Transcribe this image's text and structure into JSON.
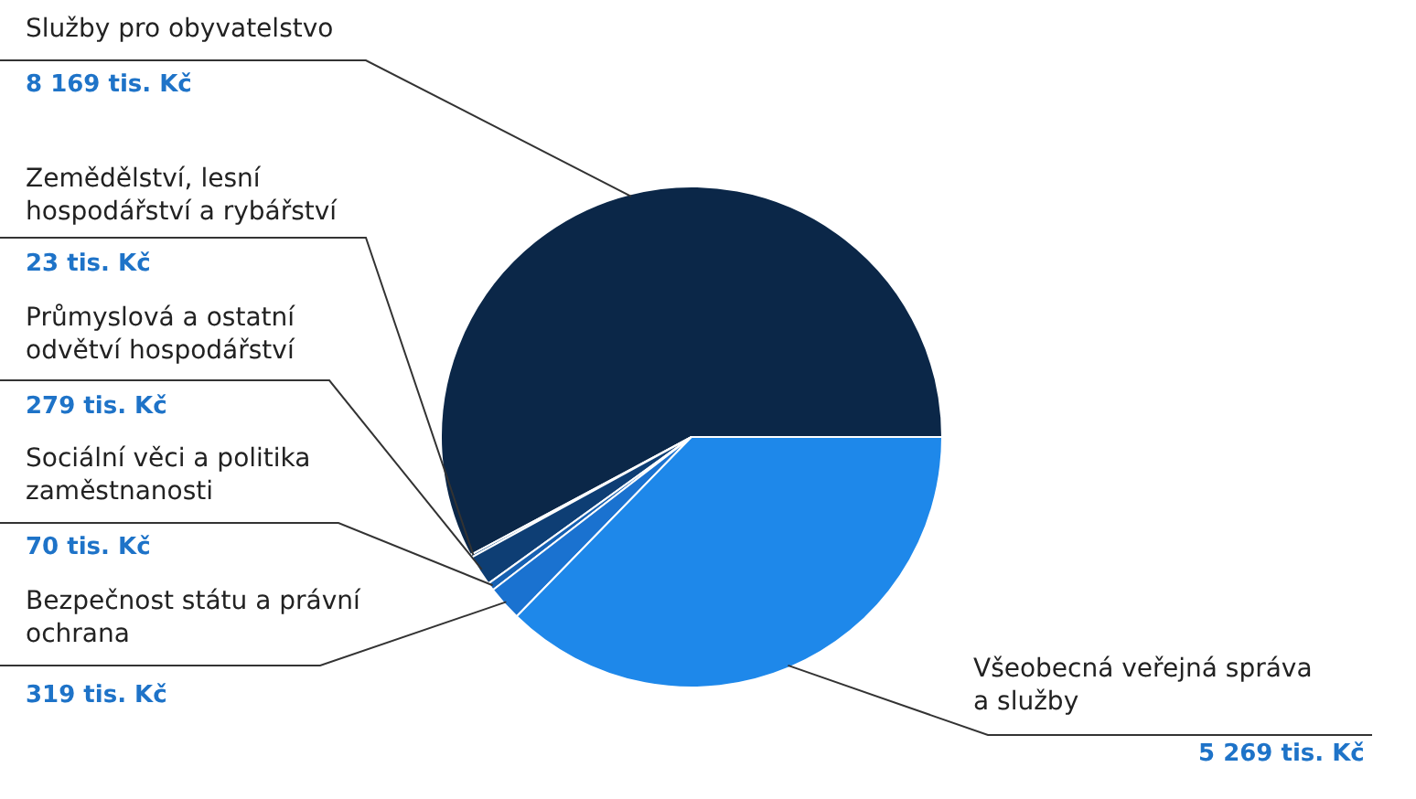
{
  "chart_data": {
    "type": "pie",
    "categories": [
      "Služby pro obyvatelstvo",
      "Zemědělství, lesní hospodářství a rybářství",
      "Průmyslová a ostatní odvětví hospodářství",
      "Sociální věci a politika zaměstnanosti",
      "Bezpečnost státu a právní ochrana",
      "Všeobecná veřejná správa a služby"
    ],
    "values": [
      8169,
      23,
      279,
      70,
      319,
      5269
    ],
    "value_labels": [
      "8 169 tis. Kč",
      "23 tis. Kč",
      "279 tis. Kč",
      "70 tis. Kč",
      "319 tis. Kč",
      "5 269 tis. Kč"
    ],
    "colors": [
      "#0b2748",
      "#114a86",
      "#0e3e74",
      "#1560b2",
      "#1a72d0",
      "#1e88ea"
    ]
  }
}
